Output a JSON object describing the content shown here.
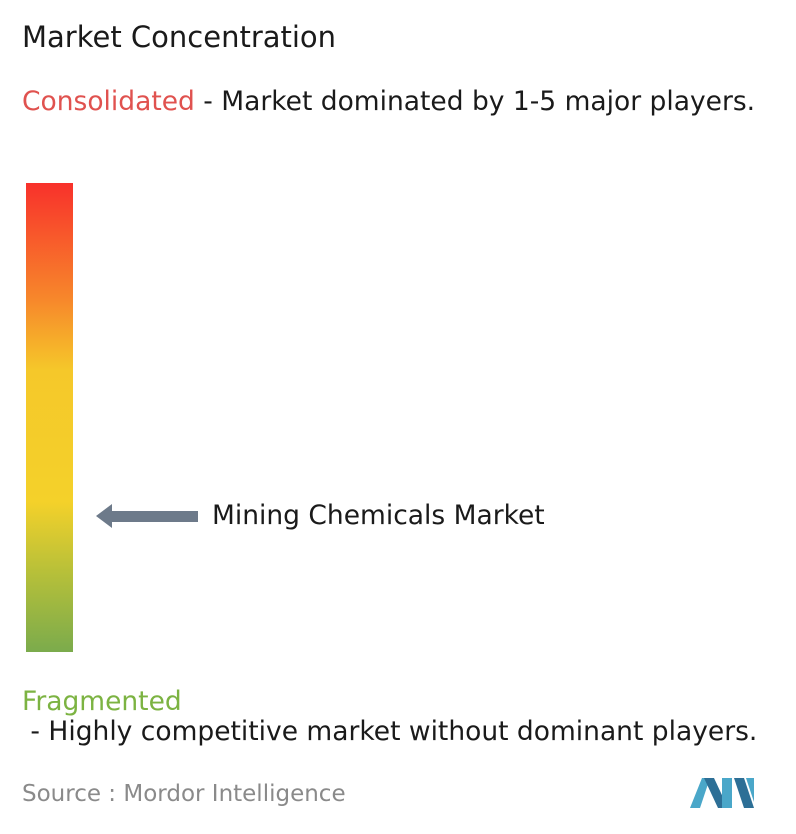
{
  "title": "Market Concentration",
  "consolidated": {
    "label": "Consolidated",
    "description": " - Market dominated by 1-5 major players."
  },
  "market": {
    "label": "Mining Chemicals Market"
  },
  "fragmented": {
    "label": "Fragmented",
    "description": " - Highly competitive market without dominant players."
  },
  "source": {
    "label": "Source :",
    "name": "Mordor Intelligence"
  }
}
